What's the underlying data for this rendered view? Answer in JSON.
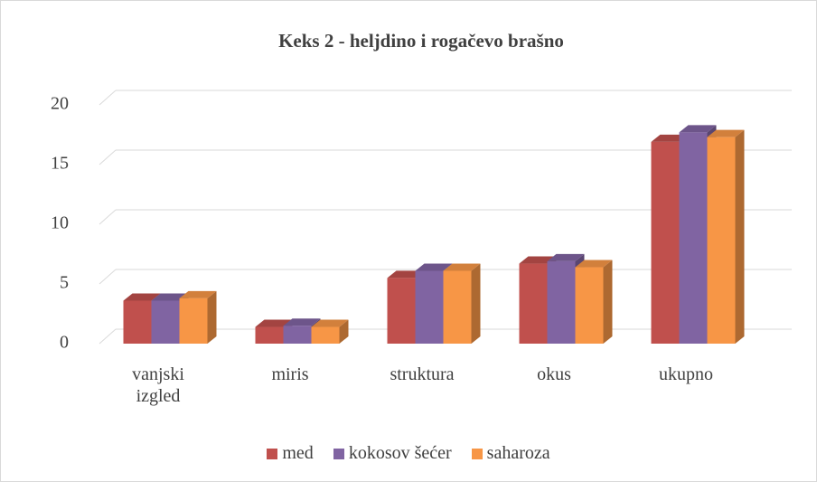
{
  "chart_data": {
    "type": "bar3d",
    "title": "Keks 2 - heljdino i rogačevo brašno",
    "categories": [
      "vanjski izgled",
      "miris",
      "struktura",
      "okus",
      "ukupno"
    ],
    "series": [
      {
        "name": "med",
        "color": "#c0504d",
        "values": [
          3.6,
          1.4,
          5.5,
          6.7,
          16.9
        ]
      },
      {
        "name": "kokosov šećer",
        "color": "#8064a2",
        "values": [
          3.6,
          1.5,
          6.1,
          6.9,
          17.7
        ]
      },
      {
        "name": "saharoza",
        "color": "#f79646",
        "values": [
          3.8,
          1.4,
          6.1,
          6.4,
          17.3
        ]
      }
    ],
    "ylim": [
      0,
      20
    ],
    "yticks": [
      0,
      5,
      10,
      15,
      20
    ],
    "grid": true,
    "legend": "bottom"
  }
}
